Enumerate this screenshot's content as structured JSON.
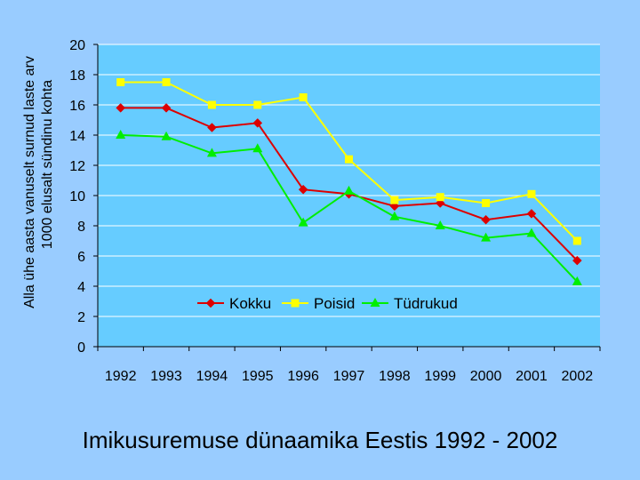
{
  "caption": "Imikusuremuse dünaamika Eestis 1992 - 2002",
  "chart_data": {
    "type": "line",
    "ylabel_lines": [
      "Alla ühe aasta vanuselt surnud laste arv",
      "1000 elusalt sündinu kohta"
    ],
    "xlabel": "",
    "categories": [
      "1992",
      "1993",
      "1994",
      "1995",
      "1996",
      "1997",
      "1998",
      "1999",
      "2000",
      "2001",
      "2002"
    ],
    "ylim": [
      0,
      20
    ],
    "yticks": [
      0,
      2,
      4,
      6,
      8,
      10,
      12,
      14,
      16,
      18,
      20
    ],
    "grid": true,
    "legend_position": "inside-bottom-center",
    "plot_background": "#66ccff",
    "series": [
      {
        "name": "Kokku",
        "color": "#dd0000",
        "marker": "diamond",
        "values": [
          15.8,
          15.8,
          14.5,
          14.8,
          10.4,
          10.1,
          9.3,
          9.5,
          8.4,
          8.8,
          5.7
        ]
      },
      {
        "name": "Poisid",
        "color": "#ffff00",
        "marker": "square",
        "values": [
          17.5,
          17.5,
          16.0,
          16.0,
          16.5,
          12.4,
          9.7,
          9.9,
          9.5,
          10.1,
          7.0
        ]
      },
      {
        "name": "Tüdrukud",
        "color": "#00ee00",
        "marker": "triangle",
        "values": [
          14.0,
          13.9,
          12.8,
          13.1,
          8.2,
          10.3,
          8.6,
          8.0,
          7.2,
          7.5,
          4.3
        ]
      }
    ]
  }
}
